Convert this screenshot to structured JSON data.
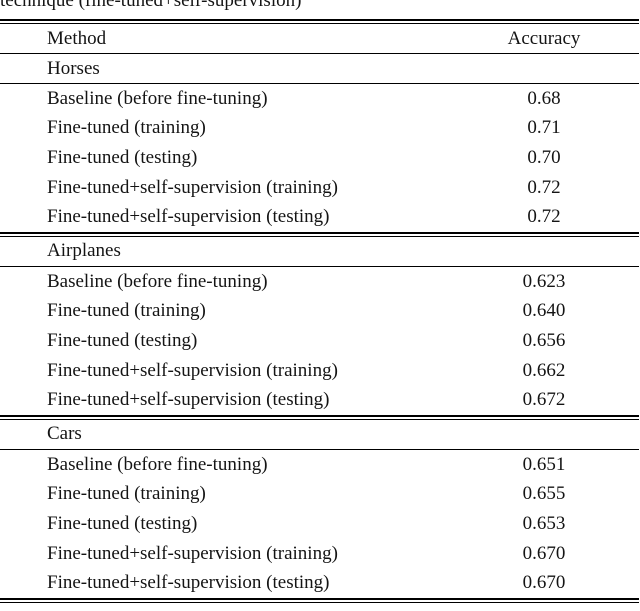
{
  "caption": {
    "fragment": "technique (fine-tuned+self-supervision)"
  },
  "table": {
    "columns": {
      "method": "Method",
      "accuracy": "Accuracy"
    },
    "sections": [
      {
        "name": "Horses",
        "rows": [
          {
            "method": "Baseline (before fine-tuning)",
            "accuracy": "0.68"
          },
          {
            "method": "Fine-tuned (training)",
            "accuracy": "0.71"
          },
          {
            "method": "Fine-tuned (testing)",
            "accuracy": "0.70"
          },
          {
            "method": "Fine-tuned+self-supervision (training)",
            "accuracy": "0.72"
          },
          {
            "method": "Fine-tuned+self-supervision (testing)",
            "accuracy": "0.72"
          }
        ]
      },
      {
        "name": "Airplanes",
        "rows": [
          {
            "method": "Baseline (before fine-tuning)",
            "accuracy": "0.623"
          },
          {
            "method": "Fine-tuned (training)",
            "accuracy": "0.640"
          },
          {
            "method": "Fine-tuned (testing)",
            "accuracy": "0.656"
          },
          {
            "method": "Fine-tuned+self-supervision (training)",
            "accuracy": "0.662"
          },
          {
            "method": "Fine-tuned+self-supervision (testing)",
            "accuracy": "0.672"
          }
        ]
      },
      {
        "name": "Cars",
        "rows": [
          {
            "method": "Baseline (before fine-tuning)",
            "accuracy": "0.651"
          },
          {
            "method": "Fine-tuned (training)",
            "accuracy": "0.655"
          },
          {
            "method": "Fine-tuned (testing)",
            "accuracy": "0.653"
          },
          {
            "method": "Fine-tuned+self-supervision (training)",
            "accuracy": "0.670"
          },
          {
            "method": "Fine-tuned+self-supervision (testing)",
            "accuracy": "0.670"
          }
        ]
      }
    ]
  },
  "colors": {
    "text": "#141414",
    "rule": "#000000",
    "background": "#ffffff"
  }
}
